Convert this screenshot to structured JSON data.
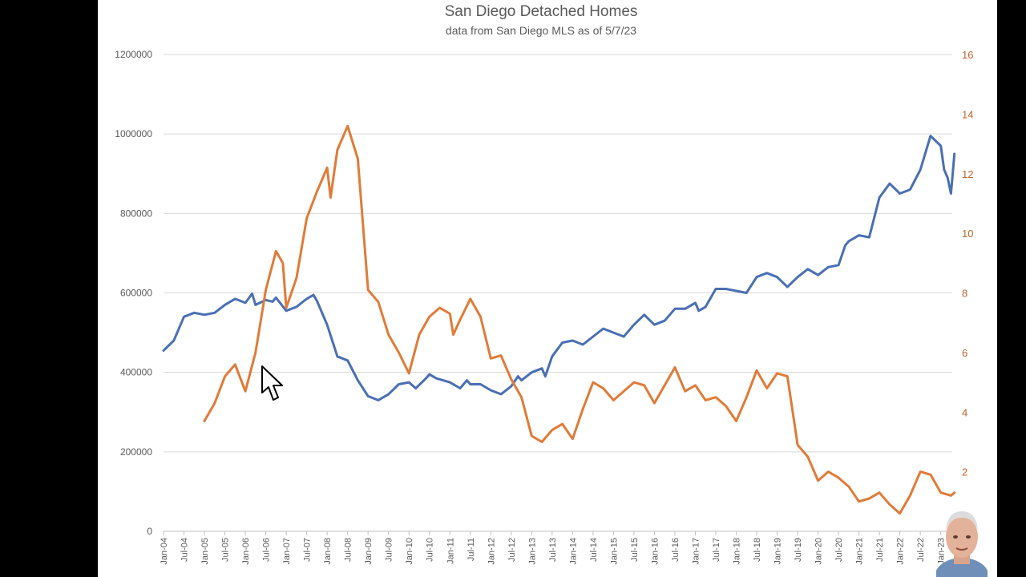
{
  "chart_data": {
    "type": "line",
    "title": "San Diego Detached Homes",
    "subtitle": "data from San Diego MLS as of 5/7/23",
    "xlabel": "",
    "ylabel": "",
    "ylabel_right": "",
    "grid": "horizontal",
    "ylim_left": [
      0,
      1200000
    ],
    "ylim_right": [
      0,
      16
    ],
    "yticks_left": [
      "0",
      "200000",
      "400000",
      "600000",
      "800000",
      "1000000",
      "1200000"
    ],
    "yticks_right": [
      "2",
      "4",
      "6",
      "8",
      "10",
      "12",
      "14",
      "16"
    ],
    "x_tick_labels": [
      "Jan-04",
      "Jul-04",
      "Jan-05",
      "Jul-05",
      "Jan-06",
      "Jul-06",
      "Jan-07",
      "Jul-07",
      "Jan-08",
      "Jul-08",
      "Jan-09",
      "Jul-09",
      "Jan-10",
      "Jul-10",
      "Jan-11",
      "Jul-11",
      "Jan-12",
      "Jul-12",
      "Jan-13",
      "Jul-13",
      "Jan-14",
      "Jul-14",
      "Jan-15",
      "Jul-15",
      "Jan-16",
      "Jul-16",
      "Jan-17",
      "Jul-17",
      "Jan-18",
      "Jul-18",
      "Jan-19",
      "Jul-19",
      "Jan-20",
      "Jul-20",
      "Jan-21",
      "Jul-21",
      "Jan-22",
      "Jul-22",
      "Jan-23"
    ],
    "series": [
      {
        "axis": "left",
        "color": "#4a6fb3",
        "points": [
          [
            "Jan-04",
            455000
          ],
          [
            "Apr-04",
            480000
          ],
          [
            "Jul-04",
            540000
          ],
          [
            "Oct-04",
            550000
          ],
          [
            "Jan-05",
            545000
          ],
          [
            "Apr-05",
            550000
          ],
          [
            "Jul-05",
            570000
          ],
          [
            "Oct-05",
            585000
          ],
          [
            "Jan-06",
            575000
          ],
          [
            "Mar-06",
            598000
          ],
          [
            "Apr-06",
            570000
          ],
          [
            "Jul-06",
            582000
          ],
          [
            "Sep-06",
            578000
          ],
          [
            "Oct-06",
            588000
          ],
          [
            "Jan-07",
            555000
          ],
          [
            "Apr-07",
            565000
          ],
          [
            "Jul-07",
            585000
          ],
          [
            "Sep-07",
            595000
          ],
          [
            "Oct-07",
            580000
          ],
          [
            "Jan-08",
            520000
          ],
          [
            "Apr-08",
            440000
          ],
          [
            "Jul-08",
            430000
          ],
          [
            "Oct-08",
            380000
          ],
          [
            "Jan-09",
            340000
          ],
          [
            "Apr-09",
            330000
          ],
          [
            "Jul-09",
            345000
          ],
          [
            "Oct-09",
            370000
          ],
          [
            "Jan-10",
            375000
          ],
          [
            "Mar-10",
            360000
          ],
          [
            "Jun-10",
            385000
          ],
          [
            "Jul-10",
            395000
          ],
          [
            "Sep-10",
            385000
          ],
          [
            "Jan-11",
            375000
          ],
          [
            "Apr-11",
            360000
          ],
          [
            "Jun-11",
            380000
          ],
          [
            "Jul-11",
            370000
          ],
          [
            "Oct-11",
            370000
          ],
          [
            "Jan-12",
            355000
          ],
          [
            "Apr-12",
            345000
          ],
          [
            "Jul-12",
            365000
          ],
          [
            "Sep-12",
            390000
          ],
          [
            "Oct-12",
            380000
          ],
          [
            "Jan-13",
            400000
          ],
          [
            "Apr-13",
            410000
          ],
          [
            "May-13",
            390000
          ],
          [
            "Jul-13",
            440000
          ],
          [
            "Oct-13",
            475000
          ],
          [
            "Jan-14",
            480000
          ],
          [
            "Apr-14",
            470000
          ],
          [
            "Jul-14",
            490000
          ],
          [
            "Oct-14",
            510000
          ],
          [
            "Jan-15",
            500000
          ],
          [
            "Apr-15",
            490000
          ],
          [
            "Jul-15",
            520000
          ],
          [
            "Oct-15",
            545000
          ],
          [
            "Jan-16",
            520000
          ],
          [
            "Apr-16",
            530000
          ],
          [
            "Jul-16",
            560000
          ],
          [
            "Oct-16",
            560000
          ],
          [
            "Jan-17",
            575000
          ],
          [
            "Feb-17",
            555000
          ],
          [
            "Apr-17",
            565000
          ],
          [
            "Jul-17",
            610000
          ],
          [
            "Oct-17",
            610000
          ],
          [
            "Jan-18",
            605000
          ],
          [
            "Apr-18",
            600000
          ],
          [
            "Jul-18",
            640000
          ],
          [
            "Oct-18",
            650000
          ],
          [
            "Jan-19",
            640000
          ],
          [
            "Apr-19",
            615000
          ],
          [
            "Jul-19",
            640000
          ],
          [
            "Oct-19",
            660000
          ],
          [
            "Jan-20",
            645000
          ],
          [
            "Apr-20",
            665000
          ],
          [
            "Jul-20",
            670000
          ],
          [
            "Sep-20",
            720000
          ],
          [
            "Oct-20",
            730000
          ],
          [
            "Jan-21",
            745000
          ],
          [
            "Apr-21",
            740000
          ],
          [
            "Jul-21",
            840000
          ],
          [
            "Oct-21",
            875000
          ],
          [
            "Jan-22",
            850000
          ],
          [
            "Apr-22",
            860000
          ],
          [
            "Jul-22",
            910000
          ],
          [
            "Oct-22",
            995000
          ],
          [
            "Jan-23",
            970000
          ],
          [
            "Feb-23",
            910000
          ],
          [
            "Mar-23",
            890000
          ],
          [
            "Apr-23",
            850000
          ],
          [
            "May-23",
            950000
          ]
        ]
      },
      {
        "axis": "right",
        "color": "#e07b39",
        "points": [
          [
            "Jan-05",
            3.7
          ],
          [
            "Apr-05",
            4.3
          ],
          [
            "Jul-05",
            5.2
          ],
          [
            "Oct-05",
            5.6
          ],
          [
            "Jan-06",
            4.7
          ],
          [
            "Apr-06",
            6.0
          ],
          [
            "Jul-06",
            8.1
          ],
          [
            "Oct-06",
            9.4
          ],
          [
            "Dec-06",
            9.0
          ],
          [
            "Jan-07",
            7.5
          ],
          [
            "Apr-07",
            8.5
          ],
          [
            "Jul-07",
            10.5
          ],
          [
            "Oct-07",
            11.4
          ],
          [
            "Jan-08",
            12.2
          ],
          [
            "Feb-08",
            11.2
          ],
          [
            "Apr-08",
            12.8
          ],
          [
            "Jul-08",
            13.6
          ],
          [
            "Oct-08",
            12.5
          ],
          [
            "Jan-09",
            8.1
          ],
          [
            "Apr-09",
            7.7
          ],
          [
            "Jul-09",
            6.6
          ],
          [
            "Oct-09",
            6.0
          ],
          [
            "Jan-10",
            5.3
          ],
          [
            "Apr-10",
            6.6
          ],
          [
            "Jul-10",
            7.2
          ],
          [
            "Oct-10",
            7.5
          ],
          [
            "Jan-11",
            7.3
          ],
          [
            "Feb-11",
            6.6
          ],
          [
            "Apr-11",
            7.1
          ],
          [
            "Jul-11",
            7.8
          ],
          [
            "Oct-11",
            7.2
          ],
          [
            "Jan-12",
            5.8
          ],
          [
            "Apr-12",
            5.9
          ],
          [
            "Jul-12",
            5.1
          ],
          [
            "Oct-12",
            4.5
          ],
          [
            "Jan-13",
            3.2
          ],
          [
            "Apr-13",
            3.0
          ],
          [
            "Jul-13",
            3.4
          ],
          [
            "Oct-13",
            3.6
          ],
          [
            "Jan-14",
            3.1
          ],
          [
            "Apr-14",
            4.1
          ],
          [
            "Jul-14",
            5.0
          ],
          [
            "Oct-14",
            4.8
          ],
          [
            "Jan-15",
            4.4
          ],
          [
            "Apr-15",
            4.7
          ],
          [
            "Jul-15",
            5.0
          ],
          [
            "Oct-15",
            4.9
          ],
          [
            "Jan-16",
            4.3
          ],
          [
            "Apr-16",
            4.9
          ],
          [
            "Jul-16",
            5.5
          ],
          [
            "Oct-16",
            4.7
          ],
          [
            "Jan-17",
            4.9
          ],
          [
            "Apr-17",
            4.4
          ],
          [
            "Jul-17",
            4.5
          ],
          [
            "Oct-17",
            4.2
          ],
          [
            "Jan-18",
            3.7
          ],
          [
            "Apr-18",
            4.5
          ],
          [
            "Jul-18",
            5.4
          ],
          [
            "Oct-18",
            4.8
          ],
          [
            "Jan-19",
            5.3
          ],
          [
            "Apr-19",
            5.2
          ],
          [
            "Jul-19",
            2.9
          ],
          [
            "Oct-19",
            2.5
          ],
          [
            "Jan-20",
            1.7
          ],
          [
            "Apr-20",
            2.0
          ],
          [
            "Jul-20",
            1.8
          ],
          [
            "Oct-20",
            1.5
          ],
          [
            "Jan-21",
            1.0
          ],
          [
            "Apr-21",
            1.1
          ],
          [
            "Jul-21",
            1.3
          ],
          [
            "Oct-21",
            0.9
          ],
          [
            "Jan-22",
            0.6
          ],
          [
            "Apr-22",
            1.2
          ],
          [
            "Jul-22",
            2.0
          ],
          [
            "Oct-22",
            1.9
          ],
          [
            "Jan-23",
            1.3
          ],
          [
            "Apr-23",
            1.2
          ],
          [
            "May-23",
            1.3
          ]
        ]
      }
    ]
  }
}
